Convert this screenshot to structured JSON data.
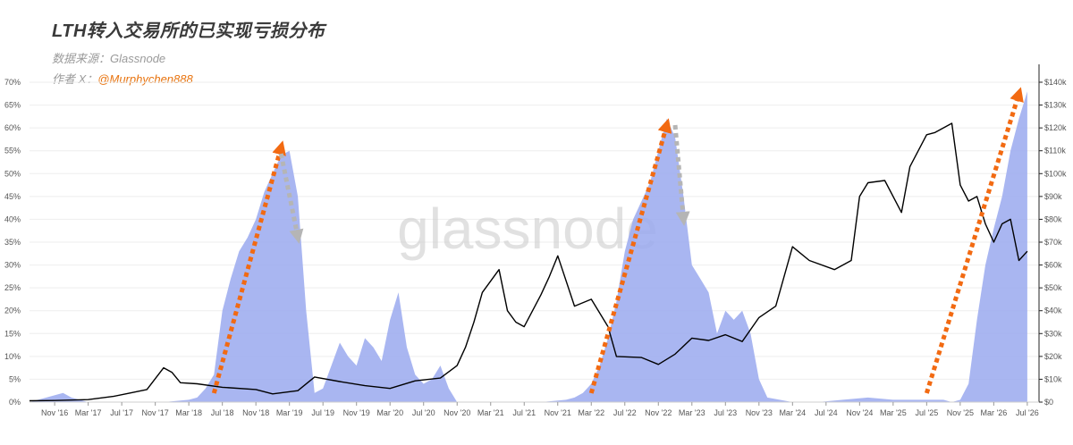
{
  "header": {
    "title": "LTH转入交易所的已实现亏损分布",
    "source": "数据来源：Glassnode",
    "author_label": "作者 X：",
    "author_handle": "@Murphychen888"
  },
  "watermark": "glassnode",
  "colors": {
    "area": "#9aa9ee",
    "price": "#000000",
    "arrow_up": "#f26a12",
    "arrow_down": "#b5b5b5",
    "grid": "#eeeeee"
  },
  "chart_data": {
    "type": "area",
    "x_ticks": [
      "Nov '16",
      "Mar '17",
      "Jul '17",
      "Nov '17",
      "Mar '18",
      "Jul '18",
      "Nov '18",
      "Mar '19",
      "Jul '19",
      "Nov '19",
      "Mar '20",
      "Jul '20",
      "Nov '20",
      "Mar '21",
      "Jul '21",
      "Nov '21",
      "Mar '22",
      "Jul '22",
      "Nov '22",
      "Mar '23",
      "Jul '23",
      "Nov '23",
      "Mar '24",
      "Jul '24",
      "Nov '24",
      "Mar '25",
      "Jul '25",
      "Nov '25",
      "Mar '26",
      "Jul '26"
    ],
    "x_tick_dates": [
      "2016-11",
      "2017-03",
      "2017-07",
      "2017-11",
      "2018-03",
      "2018-07",
      "2018-11",
      "2019-03",
      "2019-07",
      "2019-11",
      "2020-03",
      "2020-07",
      "2020-11",
      "2021-03",
      "2021-07",
      "2021-11",
      "2022-03",
      "2022-07",
      "2022-11",
      "2023-03",
      "2023-07",
      "2023-11",
      "2024-03",
      "2024-07",
      "2024-11",
      "2025-03",
      "2025-07",
      "2025-11",
      "2026-03",
      "2026-07"
    ],
    "y_left_ticks": [
      "0%",
      "5%",
      "10%",
      "15%",
      "20%",
      "25%",
      "30%",
      "35%",
      "40%",
      "45%",
      "50%",
      "55%",
      "60%",
      "65%",
      "70%"
    ],
    "y_left_range": [
      0,
      70
    ],
    "y_right_ticks": [
      "$0",
      "$10k",
      "$20k",
      "$30k",
      "$40k",
      "$50k",
      "$60k",
      "$70k",
      "$80k",
      "$90k",
      "$100k",
      "$110k",
      "$120k",
      "$130k",
      "$140k"
    ],
    "y_right_range": [
      0,
      140000
    ],
    "grid": true,
    "series": [
      {
        "type": "area",
        "axis": "left",
        "x": [
          "2016-08",
          "2016-10",
          "2016-12",
          "2017-01",
          "2017-03",
          "2017-06",
          "2017-09",
          "2017-12",
          "2018-03",
          "2018-04",
          "2018-05",
          "2018-06",
          "2018-07",
          "2018-08",
          "2018-09",
          "2018-10",
          "2018-11",
          "2018-12",
          "2019-01",
          "2019-02",
          "2019-03",
          "2019-04",
          "2019-05",
          "2019-06",
          "2019-07",
          "2019-08",
          "2019-09",
          "2019-10",
          "2019-11",
          "2019-12",
          "2020-01",
          "2020-02",
          "2020-03",
          "2020-04",
          "2020-05",
          "2020-06",
          "2020-07",
          "2020-08",
          "2020-09",
          "2020-10",
          "2020-11",
          "2020-12",
          "2021-03",
          "2021-06",
          "2021-09",
          "2021-12",
          "2022-01",
          "2022-02",
          "2022-03",
          "2022-04",
          "2022-05",
          "2022-06",
          "2022-07",
          "2022-08",
          "2022-09",
          "2022-10",
          "2022-11",
          "2022-12",
          "2023-01",
          "2023-02",
          "2023-03",
          "2023-04",
          "2023-05",
          "2023-06",
          "2023-07",
          "2023-08",
          "2023-09",
          "2023-10",
          "2023-11",
          "2023-12",
          "2024-03",
          "2024-06",
          "2024-09",
          "2024-12",
          "2025-03",
          "2025-06",
          "2025-09",
          "2025-10",
          "2025-11",
          "2025-12",
          "2026-01",
          "2026-02",
          "2026-03",
          "2026-04",
          "2026-05",
          "2026-06",
          "2026-07"
        ],
        "values": [
          0,
          1,
          2,
          1,
          0,
          0,
          0,
          0,
          0.5,
          1,
          3,
          6,
          20,
          27,
          33,
          36,
          40,
          46,
          50,
          54,
          55,
          45,
          20,
          2,
          3,
          8,
          13,
          10,
          8,
          14,
          12,
          9,
          18,
          24,
          12,
          6,
          4,
          5,
          8,
          3,
          0,
          0,
          0,
          0,
          0,
          0.5,
          1,
          2,
          4,
          8,
          14,
          22,
          33,
          40,
          44,
          48,
          55,
          62,
          58,
          45,
          30,
          27,
          24,
          15,
          20,
          18,
          20,
          15,
          5,
          1,
          0,
          0,
          0.5,
          1,
          0.5,
          0.5,
          0.5,
          0,
          0.5,
          4,
          18,
          30,
          38,
          45,
          55,
          62,
          68
        ]
      },
      {
        "type": "line",
        "axis": "right",
        "x": [
          "2016-08",
          "2016-11",
          "2017-03",
          "2017-06",
          "2017-08",
          "2017-10",
          "2017-12",
          "2018-01",
          "2018-02",
          "2018-04",
          "2018-07",
          "2018-11",
          "2019-01",
          "2019-04",
          "2019-06",
          "2019-09",
          "2019-12",
          "2020-03",
          "2020-06",
          "2020-09",
          "2020-11",
          "2020-12",
          "2021-01",
          "2021-02",
          "2021-04",
          "2021-05",
          "2021-06",
          "2021-07",
          "2021-09",
          "2021-10",
          "2021-11",
          "2022-01",
          "2022-03",
          "2022-05",
          "2022-06",
          "2022-09",
          "2022-11",
          "2023-01",
          "2023-03",
          "2023-05",
          "2023-07",
          "2023-09",
          "2023-11",
          "2024-01",
          "2024-03",
          "2024-05",
          "2024-08",
          "2024-10",
          "2024-11",
          "2024-12",
          "2025-02",
          "2025-04",
          "2025-05",
          "2025-07",
          "2025-08",
          "2025-10",
          "2025-11",
          "2025-12",
          "2026-01",
          "2026-02",
          "2026-03",
          "2026-04",
          "2026-05",
          "2026-06",
          "2026-07"
        ],
        "values": [
          600,
          700,
          1100,
          2500,
          4000,
          5500,
          15000,
          13000,
          8500,
          8000,
          6500,
          5500,
          3600,
          5000,
          11000,
          9000,
          7200,
          6000,
          9300,
          10500,
          16000,
          24000,
          35000,
          48000,
          58000,
          40000,
          35000,
          33000,
          47000,
          55000,
          64000,
          42000,
          45000,
          33000,
          20000,
          19500,
          16500,
          21000,
          28000,
          27000,
          29500,
          26500,
          37000,
          42000,
          68000,
          62000,
          58000,
          62000,
          90000,
          96000,
          97000,
          83000,
          103000,
          117000,
          118000,
          122000,
          95000,
          88000,
          90000,
          78000,
          70000,
          78000,
          80000,
          62000,
          66000
        ]
      }
    ],
    "annotations": [
      {
        "type": "arrow",
        "direction": "up",
        "from_date": "2018-06",
        "to_date": "2019-02",
        "color": "orange"
      },
      {
        "type": "arrow",
        "direction": "down",
        "from_date": "2019-02",
        "to_date": "2019-04",
        "color": "gray"
      },
      {
        "type": "arrow",
        "direction": "up",
        "from_date": "2022-03",
        "to_date": "2022-12",
        "color": "orange"
      },
      {
        "type": "arrow",
        "direction": "down",
        "from_date": "2023-01",
        "to_date": "2023-02",
        "color": "gray"
      },
      {
        "type": "arrow",
        "direction": "up",
        "from_date": "2025-07",
        "to_date": "2026-06",
        "color": "orange"
      }
    ]
  }
}
